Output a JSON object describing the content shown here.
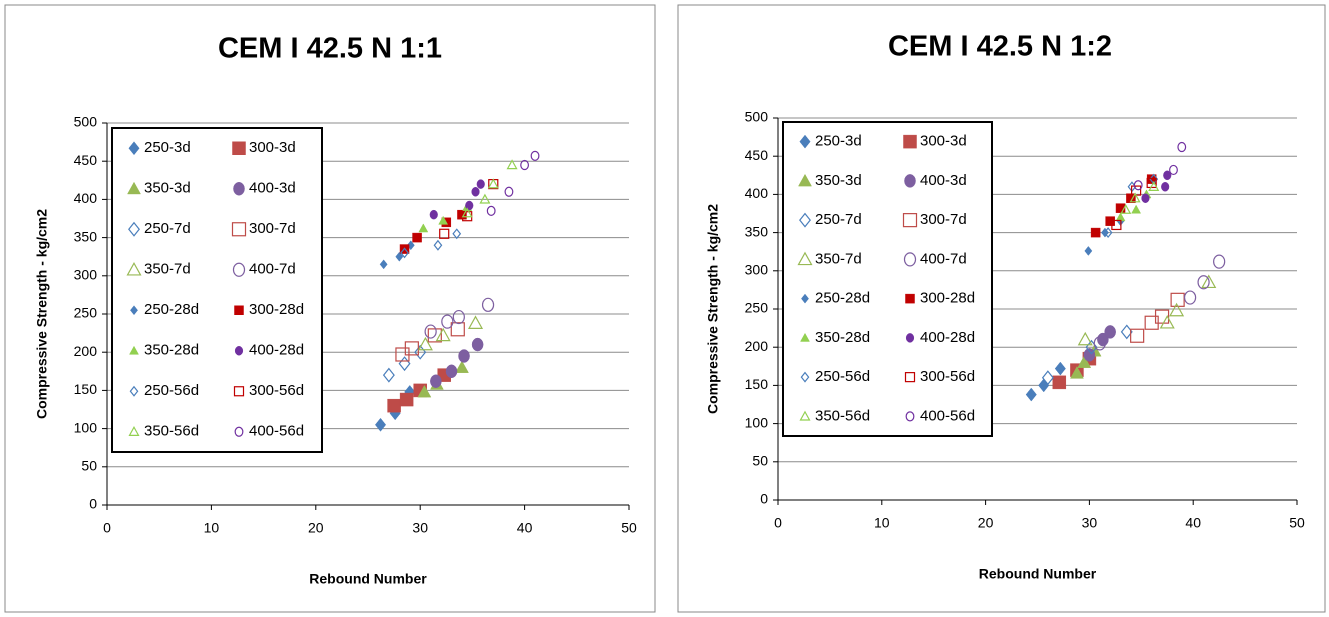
{
  "chart_data": [
    {
      "type": "scatter",
      "title": "CEM I 42.5 N 1:1",
      "x_label": "Rebound Number",
      "y_label": "Compressive Strength - kg/cm2",
      "xlim": [
        0,
        50
      ],
      "xticks": [
        0,
        10,
        20,
        30,
        40,
        50
      ],
      "ylim": [
        0,
        500
      ],
      "yticks": [
        0,
        50,
        100,
        150,
        200,
        250,
        300,
        350,
        400,
        450,
        500
      ],
      "grid": true,
      "legend": "upper left",
      "series": [
        {
          "name": "250-3d",
          "color": "#4a7ebb",
          "marker": "diamond",
          "filled": true,
          "x": [
            26.2,
            27.6,
            29
          ],
          "values": [
            105,
            120,
            148
          ]
        },
        {
          "name": "300-3d",
          "color": "#be4b48",
          "marker": "square",
          "filled": true,
          "x": [
            27.5,
            28.7,
            30,
            32.3
          ],
          "values": [
            130,
            138,
            150,
            170
          ]
        },
        {
          "name": "350-3d",
          "color": "#98b954",
          "marker": "triangle",
          "filled": true,
          "x": [
            30.4,
            31.6,
            34
          ],
          "values": [
            148,
            158,
            180
          ]
        },
        {
          "name": "400-3d",
          "color": "#7d5fa0",
          "marker": "circle",
          "filled": true,
          "x": [
            31.5,
            33,
            34.2,
            35.5
          ],
          "values": [
            162,
            175,
            195,
            210
          ]
        },
        {
          "name": "250-7d",
          "color": "#4a7ebb",
          "marker": "diamond",
          "filled": false,
          "x": [
            27,
            28.5,
            30
          ],
          "values": [
            170,
            185,
            200
          ]
        },
        {
          "name": "300-7d",
          "color": "#be4b48",
          "marker": "square",
          "filled": false,
          "x": [
            28.3,
            29.2,
            31.4,
            33.6
          ],
          "values": [
            197,
            205,
            222,
            230
          ]
        },
        {
          "name": "350-7d",
          "color": "#98b954",
          "marker": "triangle",
          "filled": false,
          "x": [
            30.5,
            32.2,
            35.3
          ],
          "values": [
            210,
            222,
            238
          ]
        },
        {
          "name": "400-7d",
          "color": "#7d5fa0",
          "marker": "circle",
          "filled": false,
          "x": [
            31,
            32.6,
            33.7,
            36.5
          ],
          "values": [
            227,
            240,
            246,
            262
          ]
        },
        {
          "name": "250-28d",
          "color": "#4a7ebb",
          "marker": "diamond",
          "filled": true,
          "x": [
            26.5,
            28,
            29.1
          ],
          "values": [
            315,
            325,
            340
          ]
        },
        {
          "name": "300-28d",
          "color": "#c00000",
          "marker": "square",
          "filled": true,
          "x": [
            28.5,
            29.7,
            32.5,
            34
          ],
          "values": [
            335,
            350,
            370,
            380
          ]
        },
        {
          "name": "350-28d",
          "color": "#92d050",
          "marker": "triangle",
          "filled": true,
          "x": [
            30.3,
            32.2,
            34.5
          ],
          "values": [
            362,
            372,
            390
          ]
        },
        {
          "name": "400-28d",
          "color": "#7030a0",
          "marker": "circle",
          "filled": true,
          "x": [
            31.3,
            34.7,
            35.3,
            35.8
          ],
          "values": [
            380,
            392,
            410,
            420
          ]
        },
        {
          "name": "250-56d",
          "color": "#4a7ebb",
          "marker": "diamond",
          "filled": false,
          "x": [
            28.5,
            31.7,
            33.5
          ],
          "values": [
            330,
            340,
            355
          ]
        },
        {
          "name": "300-56d",
          "color": "#c00000",
          "marker": "square",
          "filled": false,
          "x": [
            32.3,
            34.5,
            37
          ],
          "values": [
            355,
            378,
            420
          ]
        },
        {
          "name": "350-56d",
          "color": "#92d050",
          "marker": "triangle",
          "filled": false,
          "x": [
            34.5,
            36.2,
            37,
            38.8
          ],
          "values": [
            382,
            400,
            420,
            445
          ]
        },
        {
          "name": "400-56d",
          "color": "#7030a0",
          "marker": "circle",
          "filled": false,
          "x": [
            36.8,
            38.5,
            40,
            41
          ],
          "values": [
            385,
            410,
            445,
            457
          ]
        }
      ]
    },
    {
      "type": "scatter",
      "title": "CEM I 42.5 N 1:2",
      "x_label": "Rebound Number",
      "y_label": "Compressive Strength - kg/cm2",
      "xlim": [
        0,
        50
      ],
      "xticks": [
        0,
        10,
        20,
        30,
        40,
        50
      ],
      "ylim": [
        0,
        500
      ],
      "yticks": [
        0,
        50,
        100,
        150,
        200,
        250,
        300,
        350,
        400,
        450,
        500
      ],
      "grid": true,
      "legend": "upper left",
      "series": [
        {
          "name": "250-3d",
          "color": "#4a7ebb",
          "marker": "diamond",
          "filled": true,
          "x": [
            24.4,
            25.6,
            27.2
          ],
          "values": [
            138,
            150,
            172
          ]
        },
        {
          "name": "300-3d",
          "color": "#be4b48",
          "marker": "square",
          "filled": true,
          "x": [
            27.1,
            28.8,
            30
          ],
          "values": [
            154,
            170,
            185
          ]
        },
        {
          "name": "350-3d",
          "color": "#98b954",
          "marker": "triangle",
          "filled": true,
          "x": [
            28.8,
            29.5,
            30.5
          ],
          "values": [
            166,
            180,
            195
          ]
        },
        {
          "name": "400-3d",
          "color": "#7d5fa0",
          "marker": "circle",
          "filled": true,
          "x": [
            30,
            31.3,
            32
          ],
          "values": [
            190,
            210,
            220
          ]
        },
        {
          "name": "250-7d",
          "color": "#4a7ebb",
          "marker": "diamond",
          "filled": false,
          "x": [
            26,
            30.2,
            33.6
          ],
          "values": [
            160,
            200,
            220
          ]
        },
        {
          "name": "300-7d",
          "color": "#be4b48",
          "marker": "square",
          "filled": false,
          "x": [
            34.6,
            36,
            37,
            38.5
          ],
          "values": [
            215,
            232,
            240,
            262
          ]
        },
        {
          "name": "350-7d",
          "color": "#98b954",
          "marker": "triangle",
          "filled": false,
          "x": [
            29.6,
            37.5,
            38.4,
            41.5
          ],
          "values": [
            210,
            232,
            248,
            285
          ]
        },
        {
          "name": "400-7d",
          "color": "#7d5fa0",
          "marker": "circle",
          "filled": false,
          "x": [
            31,
            39.7,
            41,
            42.5
          ],
          "values": [
            205,
            265,
            285,
            312
          ]
        },
        {
          "name": "250-28d",
          "color": "#4a7ebb",
          "marker": "diamond",
          "filled": true,
          "x": [
            29.9,
            31.5,
            33
          ],
          "values": [
            326,
            350,
            365
          ]
        },
        {
          "name": "300-28d",
          "color": "#c00000",
          "marker": "square",
          "filled": true,
          "x": [
            30.6,
            32,
            33,
            34,
            36
          ],
          "values": [
            350,
            365,
            382,
            395,
            420
          ]
        },
        {
          "name": "350-28d",
          "color": "#92d050",
          "marker": "triangle",
          "filled": true,
          "x": [
            33,
            34.5,
            35.5
          ],
          "values": [
            370,
            380,
            400
          ]
        },
        {
          "name": "400-28d",
          "color": "#7030a0",
          "marker": "circle",
          "filled": true,
          "x": [
            35.4,
            37.3,
            37.5
          ],
          "values": [
            395,
            410,
            425
          ]
        },
        {
          "name": "250-56d",
          "color": "#4a7ebb",
          "marker": "diamond",
          "filled": false,
          "x": [
            31.8,
            34.1,
            36.2
          ],
          "values": [
            350,
            410,
            420
          ]
        },
        {
          "name": "300-56d",
          "color": "#c00000",
          "marker": "square",
          "filled": false,
          "x": [
            32.6,
            34.5,
            36
          ],
          "values": [
            360,
            405,
            415
          ]
        },
        {
          "name": "350-56d",
          "color": "#92d050",
          "marker": "triangle",
          "filled": false,
          "x": [
            33.5,
            34.4,
            36.2
          ],
          "values": [
            380,
            395,
            410
          ]
        },
        {
          "name": "400-56d",
          "color": "#7030a0",
          "marker": "circle",
          "filled": false,
          "x": [
            34.7,
            38.1,
            38.9
          ],
          "values": [
            412,
            432,
            462
          ]
        }
      ]
    }
  ]
}
